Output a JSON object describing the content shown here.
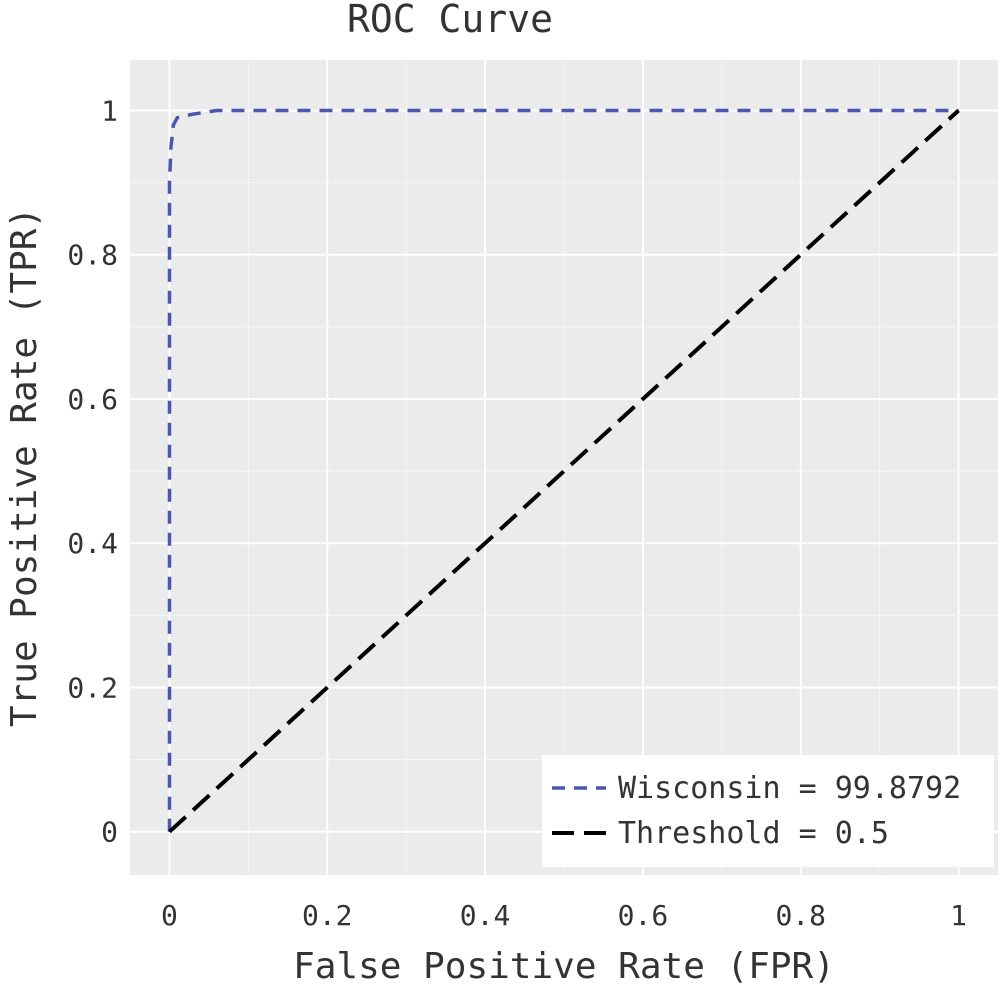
{
  "chart_data": {
    "type": "line",
    "title": "ROC Curve",
    "xlabel": "False Positive Rate (FPR)",
    "ylabel": "True Positive Rate (TPR)",
    "xlim": [
      -0.05,
      1.05
    ],
    "ylim": [
      -0.06,
      1.07
    ],
    "x_ticks": [
      0,
      0.2,
      0.4,
      0.6,
      0.8,
      1
    ],
    "x_tick_labels": [
      "0",
      "0.2",
      "0.4",
      "0.6",
      "0.8",
      "1"
    ],
    "y_ticks": [
      0,
      0.2,
      0.4,
      0.6,
      0.8,
      1
    ],
    "y_tick_labels": [
      "0",
      "0.2",
      "0.4",
      "0.6",
      "0.8",
      "1"
    ],
    "grid": true,
    "legend_position": "bottom-right",
    "series": [
      {
        "name": "Wisconsin = 99.8792",
        "color": "#4a56b0",
        "style": "dashed",
        "x": [
          0,
          0,
          0,
          0.002,
          0.005,
          0.01,
          0.03,
          0.06,
          0.1,
          0.3,
          0.6,
          1
        ],
        "y": [
          0,
          0.6,
          0.9,
          0.95,
          0.98,
          0.99,
          0.995,
          1,
          1,
          1,
          1,
          1
        ]
      },
      {
        "name": "Threshold = 0.5",
        "color": "#000000",
        "style": "dashed",
        "x": [
          0,
          1
        ],
        "y": [
          0,
          1
        ]
      }
    ]
  }
}
